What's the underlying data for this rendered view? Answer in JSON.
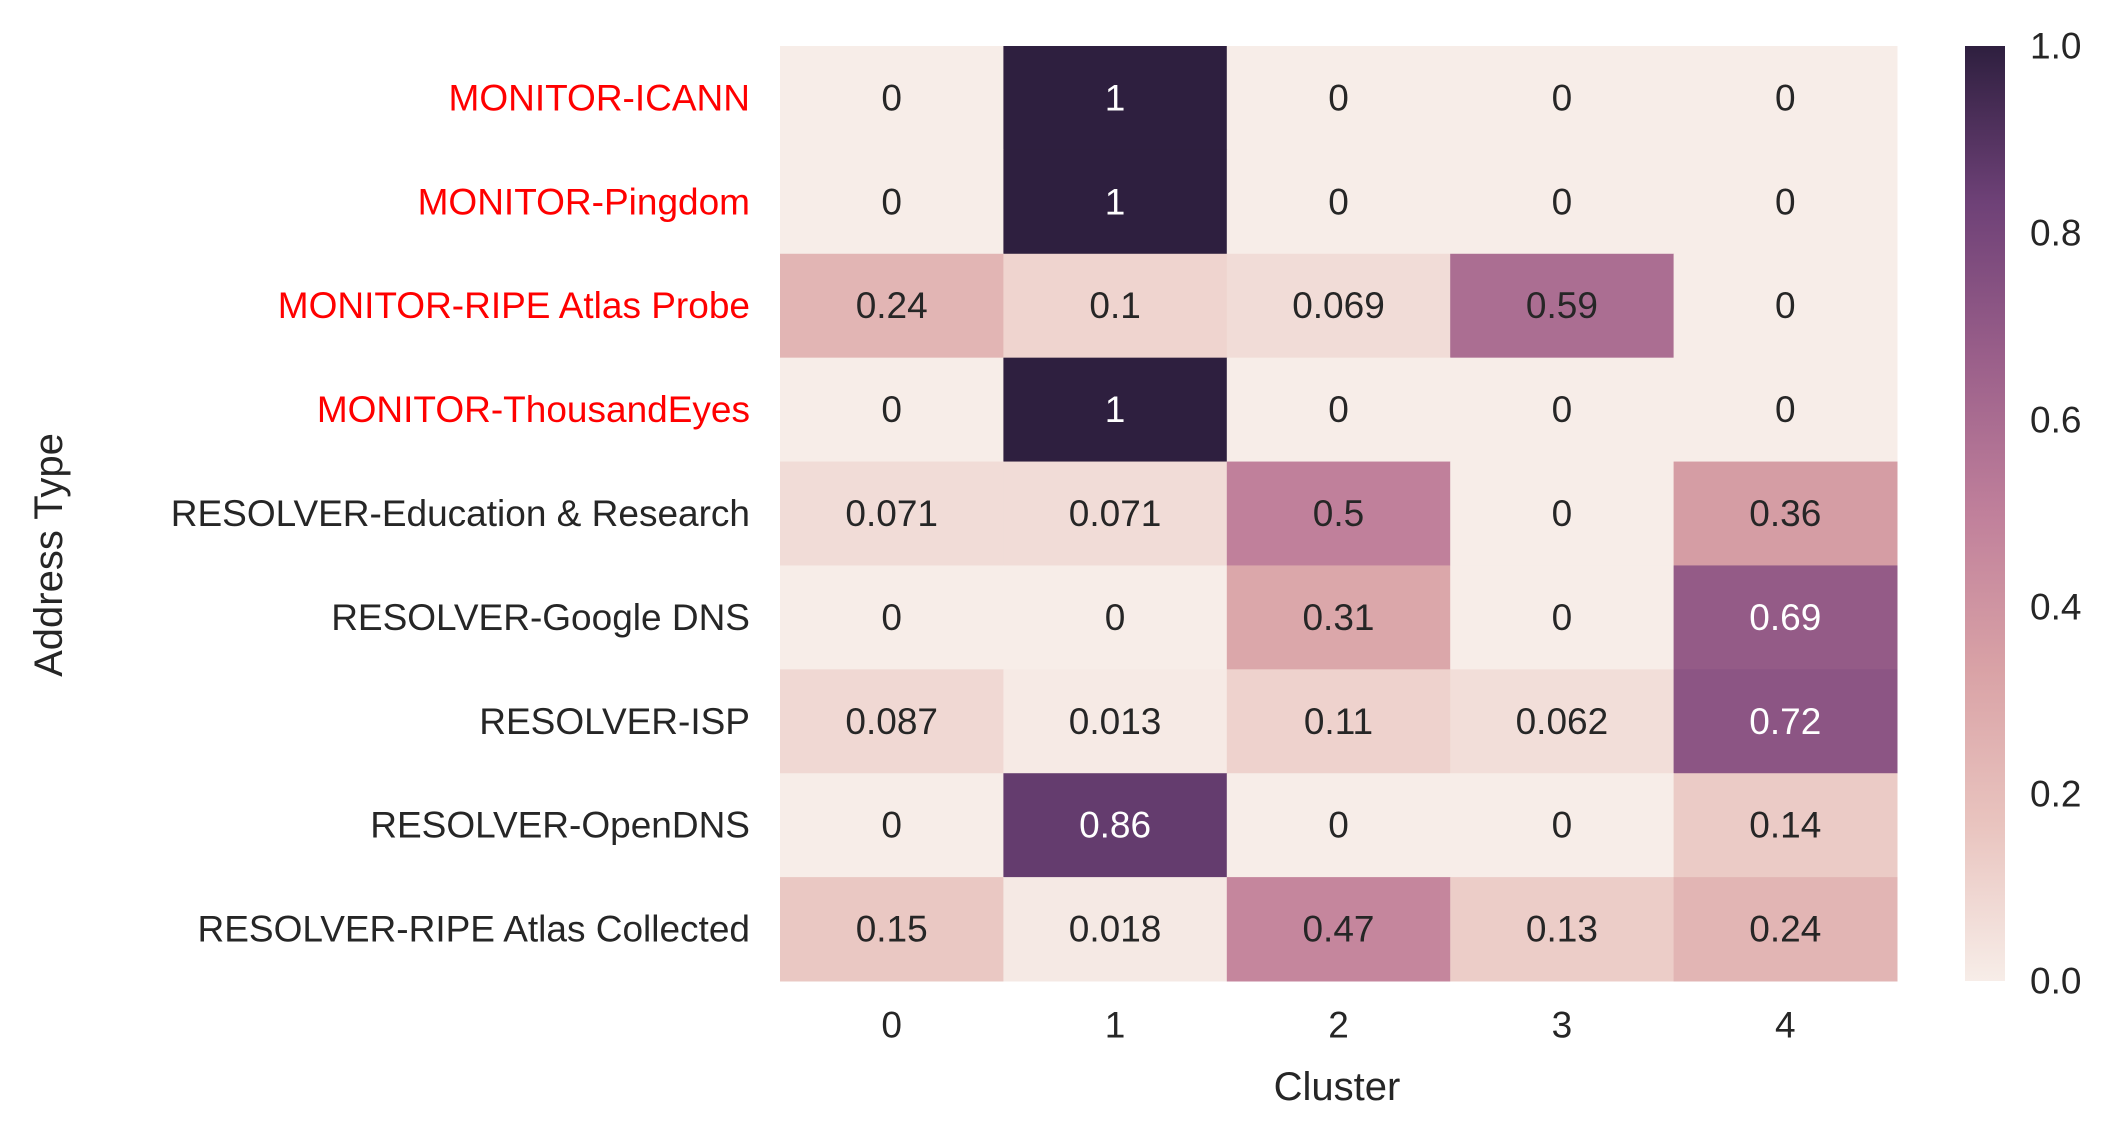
{
  "chart_data": {
    "type": "heatmap",
    "title": "",
    "xlabel": "Cluster",
    "ylabel": "Address Type",
    "x_categories": [
      "0",
      "1",
      "2",
      "3",
      "4"
    ],
    "y_categories": [
      "MONITOR-ICANN",
      "MONITOR-Pingdom",
      "MONITOR-RIPE Atlas Probe",
      "MONITOR-ThousandEyes",
      "RESOLVER-Education & Research",
      "RESOLVER-Google DNS",
      "RESOLVER-ISP",
      "RESOLVER-OpenDNS",
      "RESOLVER-RIPE Atlas Collected"
    ],
    "highlighted_rows": [
      0,
      1,
      2,
      3
    ],
    "highlight_color": "#ff0000",
    "values": [
      [
        0,
        1,
        0,
        0,
        0
      ],
      [
        0,
        1,
        0,
        0,
        0
      ],
      [
        0.24,
        0.1,
        0.069,
        0.59,
        0
      ],
      [
        0,
        1,
        0,
        0,
        0
      ],
      [
        0.071,
        0.071,
        0.5,
        0,
        0.36
      ],
      [
        0,
        0,
        0.31,
        0,
        0.69
      ],
      [
        0.087,
        0.013,
        0.11,
        0.062,
        0.72
      ],
      [
        0,
        0.86,
        0,
        0,
        0.14
      ],
      [
        0.15,
        0.018,
        0.47,
        0.13,
        0.24
      ]
    ],
    "labels": [
      [
        "0",
        "1",
        "0",
        "0",
        "0"
      ],
      [
        "0",
        "1",
        "0",
        "0",
        "0"
      ],
      [
        "0.24",
        "0.1",
        "0.069",
        "0.59",
        "0"
      ],
      [
        "0",
        "1",
        "0",
        "0",
        "0"
      ],
      [
        "0.071",
        "0.071",
        "0.5",
        "0",
        "0.36"
      ],
      [
        "0",
        "0",
        "0.31",
        "0",
        "0.69"
      ],
      [
        "0.087",
        "0.013",
        "0.11",
        "0.062",
        "0.72"
      ],
      [
        "0",
        "0.86",
        "0",
        "0",
        "0.14"
      ],
      [
        "0.15",
        "0.018",
        "0.47",
        "0.13",
        "0.24"
      ]
    ],
    "colorbar": {
      "range": [
        0,
        1
      ],
      "ticks": [
        "0.0",
        "0.2",
        "0.4",
        "0.6",
        "0.8",
        "1.0"
      ],
      "colormap_stops": [
        "#f7ede8",
        "#e9c4bf",
        "#d9a2a6",
        "#c0809b",
        "#9a5f8a",
        "#6e4177",
        "#2e1f3f"
      ]
    },
    "grid": false
  }
}
